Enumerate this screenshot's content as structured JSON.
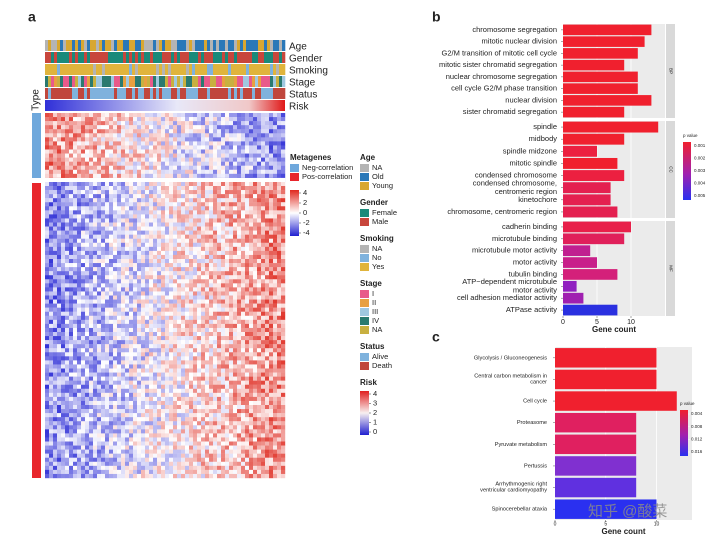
{
  "panel_labels": [
    "a",
    "b",
    "c"
  ],
  "watermark": "知乎 @酸菜",
  "chart_data": [
    {
      "type": "heatmap",
      "row_annotations": [
        "Age",
        "Gender",
        "Smoking",
        "Stage",
        "Status",
        "Risk"
      ],
      "side_annotation": "Type",
      "legends": [
        {
          "title": "Metagenes",
          "entries": [
            {
              "name": "Neg-correlation",
              "color": "#6fa8dc"
            },
            {
              "name": "Pos-correlation",
              "color": "#e8262c"
            }
          ]
        },
        {
          "title": "Age",
          "entries": [
            {
              "name": "NA",
              "color": "#b4b4b4"
            },
            {
              "name": "Old",
              "color": "#2a78b8"
            },
            {
              "name": "Young",
              "color": "#d8a730"
            }
          ]
        },
        {
          "title": "Gender",
          "entries": [
            {
              "name": "Female",
              "color": "#1a8a7a"
            },
            {
              "name": "Male",
              "color": "#c8463c"
            }
          ]
        },
        {
          "title": "Smoking",
          "entries": [
            {
              "name": "NA",
              "color": "#b4b4b4"
            },
            {
              "name": "No",
              "color": "#7fb2dd"
            },
            {
              "name": "Yes",
              "color": "#e0b43c"
            }
          ]
        },
        {
          "title": "Stage",
          "entries": [
            {
              "name": "I",
              "color": "#e85a8a"
            },
            {
              "name": "II",
              "color": "#e8a040"
            },
            {
              "name": "III",
              "color": "#a0c8e0"
            },
            {
              "name": "IV",
              "color": "#2a7a70"
            },
            {
              "name": "NA",
              "color": "#c8b040"
            }
          ]
        },
        {
          "title": "Status",
          "entries": [
            {
              "name": "Alive",
              "color": "#7fb2dd"
            },
            {
              "name": "Death",
              "color": "#c0463c"
            }
          ]
        }
      ],
      "colorbar": {
        "ticks": [
          4,
          2,
          0,
          -2,
          -4
        ]
      },
      "risk_colorbar": {
        "title": "Risk",
        "ticks": [
          4,
          3,
          2,
          1,
          0
        ]
      }
    },
    {
      "type": "bar",
      "orientation": "horizontal",
      "xlabel": "Gene count",
      "xlim": [
        0,
        15
      ],
      "xticks": [
        0,
        5,
        10
      ],
      "grid": true,
      "groups": [
        {
          "name": "BP",
          "categories": [
            "chromosome segregation",
            "mitotic nuclear division",
            "G2/M transition of mitotic cell cycle",
            "mitotic sister chromatid segregation",
            "nuclear chromosome segregation",
            "cell cycle G2/M phase transition",
            "nuclear division",
            "sister chromatid segregation"
          ],
          "values": [
            13,
            12,
            11,
            9,
            11,
            11,
            13,
            9
          ],
          "colors": [
            "#f0202e",
            "#f0202e",
            "#f0202e",
            "#f0202e",
            "#f0202e",
            "#f0202e",
            "#f0202e",
            "#f0202e"
          ]
        },
        {
          "name": "CC",
          "categories": [
            "spindle",
            "midbody",
            "spindle midzone",
            "mitotic spindle",
            "condensed chromosome",
            "condensed chromosome,\ncentromeric region",
            "kinetochore",
            "chromosome, centromeric region"
          ],
          "values": [
            14,
            9,
            5,
            8,
            9,
            7,
            7,
            8
          ],
          "colors": [
            "#f0202e",
            "#f0202e",
            "#ec2040",
            "#f0202e",
            "#ec2040",
            "#e42050",
            "#e42050",
            "#e42050"
          ]
        },
        {
          "name": "MF",
          "categories": [
            "cadherin binding",
            "microtubule binding",
            "microtubule motor activity",
            "motor activity",
            "tubulin binding",
            "ATP−dependent microtubule\nmotor activity",
            "cell adhesion mediator activity",
            "ATPase activity"
          ],
          "values": [
            10,
            9,
            4,
            5,
            8,
            2,
            3,
            8
          ],
          "colors": [
            "#e8204a",
            "#e0205a",
            "#c02090",
            "#c8208a",
            "#d4207a",
            "#9020c0",
            "#a020b0",
            "#2a30e0"
          ]
        }
      ],
      "legend": {
        "title": "p value",
        "ticks": [
          0.001,
          0.002,
          0.003,
          0.004,
          0.005
        ]
      }
    },
    {
      "type": "bar",
      "orientation": "horizontal",
      "xlabel": "Gene count",
      "xlim": [
        0,
        13.5
      ],
      "xticks": [
        0,
        5,
        10
      ],
      "grid": true,
      "groups": [
        {
          "categories": [
            "Glycolysis / Gluconeogenesis",
            "Central carbon metabolism in\ncancer",
            "Cell cycle",
            "Proteasome",
            "Pyruvate metabolism",
            "Pertussis",
            "Arrhythmogenic right\nventricular cardiomyopathy",
            "Spinocerebellar ataxia"
          ],
          "values": [
            10,
            10,
            12,
            8,
            8,
            8,
            8,
            10
          ],
          "colors": [
            "#f0202e",
            "#f0202e",
            "#f0202e",
            "#e02060",
            "#e02060",
            "#8030d0",
            "#6030e0",
            "#2a30f0"
          ]
        }
      ],
      "legend": {
        "title": "p value",
        "ticks": [
          0.004,
          0.008,
          0.012,
          0.016
        ]
      }
    }
  ]
}
